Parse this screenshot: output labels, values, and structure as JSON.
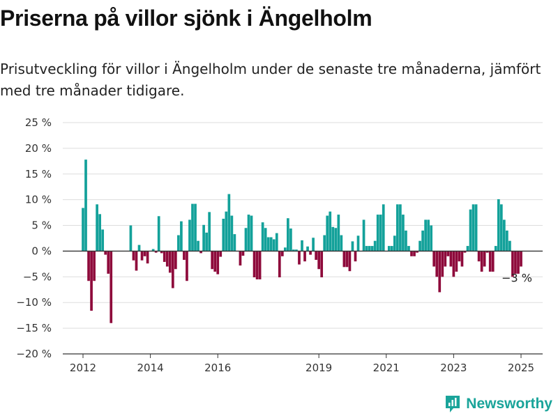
{
  "title": "Priserna på villor sjönk i Ängelholm",
  "subtitle": "Prisutveckling för villor i Ängelholm under de senaste tre månaderna, jämfört med tre månader tidigare.",
  "brand": {
    "name": "Newsworthy"
  },
  "colors": {
    "positive": "#13a19a",
    "negative": "#8e0a3b",
    "grid": "#dddddd",
    "zero": "#333333",
    "brand": "#1aa49a"
  },
  "chart_data": {
    "type": "bar",
    "title": "",
    "xlabel": "",
    "ylabel": "",
    "grid": true,
    "legend": "none",
    "ylim": [
      -20,
      25
    ],
    "y_ticks": [
      25,
      20,
      15,
      10,
      5,
      0,
      -5,
      -10,
      -15,
      -20
    ],
    "y_tick_labels": [
      "25 %",
      "20 %",
      "15 %",
      "10 %",
      "5 %",
      "0 %",
      "−5 %",
      "−10 %",
      "−15 %",
      "−20 %"
    ],
    "x_ticks": [
      "2012-01",
      "2014-01",
      "2016-01",
      "2019-01",
      "2021-01",
      "2023-01",
      "2025-01"
    ],
    "x_tick_labels": [
      "2012",
      "2014",
      "2016",
      "2019",
      "2021",
      "2023",
      "2025"
    ],
    "series": [
      {
        "values": [
          [
            "2012-01",
            8.4
          ],
          [
            "2012-02",
            17.8
          ],
          [
            "2012-03",
            -5.8
          ],
          [
            "2012-04",
            -11.6
          ],
          [
            "2012-05",
            -5.8
          ],
          [
            "2012-06",
            9.1
          ],
          [
            "2012-07",
            7.2
          ],
          [
            "2012-08",
            4.2
          ],
          [
            "2012-09",
            -0.7
          ],
          [
            "2012-10",
            -4.4
          ],
          [
            "2012-11",
            -14.0
          ],
          [
            "2013-06",
            5.0
          ],
          [
            "2013-07",
            -1.8
          ],
          [
            "2013-08",
            -3.8
          ],
          [
            "2013-09",
            1.2
          ],
          [
            "2013-10",
            -1.8
          ],
          [
            "2013-11",
            -1.0
          ],
          [
            "2013-12",
            -2.4
          ],
          [
            "2014-02",
            0.4
          ],
          [
            "2014-03",
            -0.3
          ],
          [
            "2014-04",
            6.8
          ],
          [
            "2014-05",
            -0.4
          ],
          [
            "2014-06",
            -2.1
          ],
          [
            "2014-07",
            -3.0
          ],
          [
            "2014-08",
            -4.2
          ],
          [
            "2014-09",
            -7.2
          ],
          [
            "2014-10",
            -3.5
          ],
          [
            "2014-11",
            3.1
          ],
          [
            "2014-12",
            5.8
          ],
          [
            "2015-01",
            -1.7
          ],
          [
            "2015-02",
            -5.8
          ],
          [
            "2015-03",
            6.1
          ],
          [
            "2015-04",
            9.2
          ],
          [
            "2015-05",
            9.2
          ],
          [
            "2015-06",
            2.0
          ],
          [
            "2015-07",
            -0.4
          ],
          [
            "2015-08",
            5.1
          ],
          [
            "2015-09",
            3.6
          ],
          [
            "2015-10",
            7.6
          ],
          [
            "2015-11",
            -3.5
          ],
          [
            "2015-12",
            -4.0
          ],
          [
            "2016-01",
            -4.5
          ],
          [
            "2016-02",
            -1.1
          ],
          [
            "2016-03",
            6.3
          ],
          [
            "2016-04",
            7.7
          ],
          [
            "2016-05",
            11.1
          ],
          [
            "2016-06",
            6.9
          ],
          [
            "2016-07",
            3.3
          ],
          [
            "2016-09",
            -2.8
          ],
          [
            "2016-10",
            -0.9
          ],
          [
            "2016-11",
            4.5
          ],
          [
            "2016-12",
            7.1
          ],
          [
            "2017-01",
            6.9
          ],
          [
            "2017-02",
            -5.1
          ],
          [
            "2017-03",
            -5.5
          ],
          [
            "2017-04",
            -5.5
          ],
          [
            "2017-05",
            5.6
          ],
          [
            "2017-06",
            4.5
          ],
          [
            "2017-07",
            2.7
          ],
          [
            "2017-08",
            2.7
          ],
          [
            "2017-09",
            2.3
          ],
          [
            "2017-10",
            3.5
          ],
          [
            "2017-11",
            -5.1
          ],
          [
            "2017-12",
            -1.0
          ],
          [
            "2018-01",
            0.7
          ],
          [
            "2018-02",
            6.4
          ],
          [
            "2018-03",
            4.4
          ],
          [
            "2018-04",
            0.3
          ],
          [
            "2018-05",
            0.3
          ],
          [
            "2018-06",
            -2.6
          ],
          [
            "2018-07",
            2.1
          ],
          [
            "2018-08",
            -2.0
          ],
          [
            "2018-09",
            0.9
          ],
          [
            "2018-10",
            -0.7
          ],
          [
            "2018-11",
            2.6
          ],
          [
            "2018-12",
            -1.7
          ],
          [
            "2019-01",
            -3.5
          ],
          [
            "2019-02",
            -5.1
          ],
          [
            "2019-03",
            3.1
          ],
          [
            "2019-04",
            6.9
          ],
          [
            "2019-05",
            7.7
          ],
          [
            "2019-06",
            4.7
          ],
          [
            "2019-07",
            4.5
          ],
          [
            "2019-08",
            7.1
          ],
          [
            "2019-09",
            3.1
          ],
          [
            "2019-10",
            -3.1
          ],
          [
            "2019-11",
            -3.1
          ],
          [
            "2019-12",
            -3.9
          ],
          [
            "2020-01",
            1.9
          ],
          [
            "2020-02",
            -2.0
          ],
          [
            "2020-03",
            3.0
          ],
          [
            "2020-05",
            6.1
          ],
          [
            "2020-06",
            1.0
          ],
          [
            "2020-07",
            1.0
          ],
          [
            "2020-08",
            1.0
          ],
          [
            "2020-09",
            2.0
          ],
          [
            "2020-10",
            7.1
          ],
          [
            "2020-11",
            7.1
          ],
          [
            "2020-12",
            9.1
          ],
          [
            "2021-02",
            1.0
          ],
          [
            "2021-03",
            1.0
          ],
          [
            "2021-04",
            3.0
          ],
          [
            "2021-05",
            9.1
          ],
          [
            "2021-06",
            9.1
          ],
          [
            "2021-07",
            7.1
          ],
          [
            "2021-08",
            4.0
          ],
          [
            "2021-09",
            1.0
          ],
          [
            "2021-10",
            -1.0
          ],
          [
            "2021-11",
            -1.0
          ],
          [
            "2021-12",
            -0.3
          ],
          [
            "2022-01",
            2.0
          ],
          [
            "2022-02",
            4.0
          ],
          [
            "2022-03",
            6.1
          ],
          [
            "2022-04",
            6.1
          ],
          [
            "2022-05",
            5.0
          ],
          [
            "2022-06",
            -3.0
          ],
          [
            "2022-07",
            -5.0
          ],
          [
            "2022-08",
            -8.0
          ],
          [
            "2022-09",
            -5.0
          ],
          [
            "2022-10",
            -3.0
          ],
          [
            "2022-11",
            -1.0
          ],
          [
            "2022-12",
            -3.0
          ],
          [
            "2023-01",
            -5.0
          ],
          [
            "2023-02",
            -4.0
          ],
          [
            "2023-03",
            -2.0
          ],
          [
            "2023-04",
            -3.0
          ],
          [
            "2023-05",
            -0.3
          ],
          [
            "2023-06",
            1.0
          ],
          [
            "2023-07",
            8.1
          ],
          [
            "2023-08",
            9.1
          ],
          [
            "2023-09",
            9.1
          ],
          [
            "2023-10",
            -2.0
          ],
          [
            "2023-11",
            -4.0
          ],
          [
            "2023-12",
            -3.0
          ],
          [
            "2024-01",
            -0.3
          ],
          [
            "2024-02",
            -4.0
          ],
          [
            "2024-03",
            -4.0
          ],
          [
            "2024-04",
            1.0
          ],
          [
            "2024-05",
            10.1
          ],
          [
            "2024-06",
            9.1
          ],
          [
            "2024-07",
            6.1
          ],
          [
            "2024-08",
            4.0
          ],
          [
            "2024-09",
            2.0
          ],
          [
            "2024-10",
            -5.0
          ],
          [
            "2024-11",
            -4.4
          ],
          [
            "2024-12",
            -4.4
          ],
          [
            "2025-01",
            -3.0
          ]
        ]
      }
    ],
    "annotations": [
      {
        "x": "2025-01",
        "y": -3.0,
        "text": "−3 %"
      }
    ]
  }
}
